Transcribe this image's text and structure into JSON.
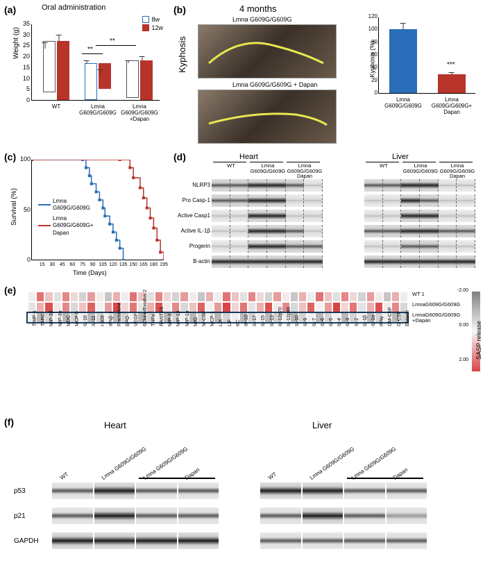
{
  "colors": {
    "blue": "#2a6db8",
    "red": "#b8332a",
    "gray": "#b0b0b0",
    "heatmap_low": "#808080",
    "heatmap_mid": "#f5f5f5",
    "heatmap_high": "#d94545"
  },
  "panels": {
    "a": {
      "label": "(a)",
      "title": "Oral administration",
      "ylabel": "Weight (g)",
      "ylim": [
        0,
        35
      ],
      "ytick_step": 5,
      "legend": [
        {
          "label": "8w",
          "fill": "#ffffff",
          "border": "#2a6db8"
        },
        {
          "label": "12w",
          "fill": "#b8332a",
          "border": "#b8332a"
        }
      ],
      "groups": [
        {
          "label": "WT",
          "bars": [
            {
              "value": 23.5,
              "err": 3,
              "fill": "#ffffff",
              "border": "#555"
            },
            {
              "value": 27,
              "err": 3,
              "fill": "#b8332a",
              "border": "#b8332a"
            }
          ]
        },
        {
          "label": "Lmna\nG609G/G609G",
          "bars": [
            {
              "value": 17,
              "err": 1,
              "fill": "#ffffff",
              "border": "#2a6db8"
            },
            {
              "value": 12,
              "err": 2,
              "fill": "#b8332a",
              "border": "#b8332a"
            }
          ]
        },
        {
          "label": "Lmna\nG609G/G609G\n+Dapan",
          "bars": [
            {
              "value": 17,
              "err": 1,
              "fill": "#ffffff",
              "border": "#555"
            },
            {
              "value": 18,
              "err": 2,
              "fill": "#b8332a",
              "border": "#b8332a"
            }
          ]
        }
      ],
      "sig": [
        {
          "text": "**",
          "from_group": 1,
          "to_group": 1,
          "y": 21
        },
        {
          "text": "**",
          "from_group": 1,
          "to_group": 2,
          "y": 23
        }
      ]
    },
    "b": {
      "label": "(b)",
      "title": "4 months",
      "kyphosis_label": "Kyphosis",
      "mouse_labels": [
        "Lmna G609G/G609G",
        "Lmna G609G/G609G + Dapan"
      ],
      "ylabel": "Kyphosis (%)",
      "ylim": [
        0,
        120
      ],
      "ytick_step": 20,
      "bars": [
        {
          "label": "Lmna G609G/G609G",
          "value": 100,
          "err": 10,
          "fill": "#2a6db8"
        },
        {
          "label": "Lmna\nG609G/G609G+\nDapan",
          "value": 30,
          "err": 3,
          "fill": "#b8332a"
        }
      ],
      "sig": "***"
    },
    "c": {
      "label": "(c)",
      "ylabel": "Survival (%)",
      "xlabel": "Time (Days)",
      "ylim": [
        0,
        100
      ],
      "ytick_step": 50,
      "xlim": [
        0,
        195
      ],
      "xticks": [
        15,
        30,
        45,
        60,
        75,
        90,
        105,
        120,
        135,
        150,
        165,
        180,
        195
      ],
      "series": [
        {
          "label": "Lmna\nG609G/G609G",
          "color": "#2a6db8",
          "points": [
            [
              0,
              100
            ],
            [
              75,
              100
            ],
            [
              80,
              92
            ],
            [
              85,
              84
            ],
            [
              88,
              76
            ],
            [
              95,
              68
            ],
            [
              100,
              60
            ],
            [
              105,
              52
            ],
            [
              108,
              44
            ],
            [
              115,
              36
            ],
            [
              120,
              28
            ],
            [
              125,
              20
            ],
            [
              130,
              12
            ],
            [
              135,
              0
            ]
          ]
        },
        {
          "label": "Lmna\nG609G/G609G+\nDapan",
          "color": "#b8332a",
          "points": [
            [
              0,
              100
            ],
            [
              130,
              100
            ],
            [
              145,
              92
            ],
            [
              150,
              82
            ],
            [
              160,
              72
            ],
            [
              165,
              62
            ],
            [
              170,
              52
            ],
            [
              175,
              42
            ],
            [
              180,
              32
            ],
            [
              185,
              20
            ],
            [
              190,
              8
            ],
            [
              195,
              0
            ]
          ]
        }
      ]
    },
    "d": {
      "label": "(d)",
      "tissues": [
        "Heart",
        "Liver"
      ],
      "lanes_per_group": 2,
      "groups": [
        "WT",
        "Lmna\nG609G/G609G",
        "Lmna G609G/G609G\nDapan"
      ],
      "proteins": [
        "NLRP3",
        "Pro Casp-1",
        "Active Casp1",
        "Active IL-1β",
        "Progerin",
        "B-actin"
      ],
      "intensities": {
        "Heart": [
          [
            "med",
            "med",
            "dark",
            "dark",
            "med",
            "light"
          ],
          [
            "med",
            "med",
            "dark",
            "dark",
            "light",
            "light"
          ],
          [
            "light",
            "light",
            "dark",
            "dark",
            "light",
            "light"
          ],
          [
            "light",
            "light",
            "dark",
            "dark",
            "med",
            "light"
          ],
          [
            "light",
            "light",
            "dark",
            "dark",
            "med",
            "med"
          ],
          [
            "dark",
            "dark",
            "dark",
            "dark",
            "dark",
            "dark"
          ]
        ],
        "Liver": [
          [
            "med",
            "med",
            "dark",
            "dark",
            "light",
            "light"
          ],
          [
            "light",
            "light",
            "dark",
            "med",
            "light",
            "light"
          ],
          [
            "light",
            "light",
            "dark",
            "dark",
            "light",
            "light"
          ],
          [
            "med",
            "med",
            "dark",
            "dark",
            "med",
            "med"
          ],
          [
            "light",
            "light",
            "med",
            "med",
            "light",
            "light"
          ],
          [
            "dark",
            "dark",
            "dark",
            "dark",
            "dark",
            "dark"
          ]
        ]
      }
    },
    "e": {
      "label": "(e)",
      "row_labels": [
        "WT 1",
        "LmnaG609G/G609G",
        "LmnaG609G/G609G\n+Dapan"
      ],
      "col_labels": [
        "TIMP-1",
        "TARC",
        "MIP-3β",
        "MIP-3α",
        "MDC",
        "MCP-5",
        "IL-16",
        "IL-11",
        "I-309",
        "IFNβ-1",
        "Fractalkine",
        "EPO",
        "VEGF",
        "6Ckine/Exodus 2",
        "TNFα",
        "RANTES",
        "MIP-2",
        "MIP-1β",
        "MIP-1α",
        "MIG",
        "M-CSF",
        "MCP-1",
        "LIX",
        "LIF",
        "KC",
        "IP-10",
        "IL-17",
        "IL-15",
        "IL-13",
        "IL-12p70",
        "IL-12p40",
        "IL-10",
        "IL-9",
        "IL-7",
        "IL-6",
        "IL-5",
        "IL-4",
        "IL-3",
        "IL-2",
        "IL-1β",
        "IL-1α",
        "IFNγ",
        "GM-CSF",
        "G-CSF",
        "Eotaxin"
      ],
      "colorbar": {
        "label": "SASP release",
        "ticks": [
          -2.0,
          0.0,
          2.0
        ]
      },
      "highlight_row": 2
    },
    "f": {
      "label": "(f)",
      "tissues": [
        "Heart",
        "Liver"
      ],
      "lane_labels": [
        "WT",
        "Lmna G609G/G609G",
        "Lmna G609G/G609G",
        "Dapan"
      ],
      "proteins": [
        "p53",
        "p21",
        "GAPDH"
      ],
      "intensities": {
        "Heart": [
          [
            "med",
            "dark",
            "med",
            "med"
          ],
          [
            "med",
            "dark",
            "med",
            "med"
          ],
          [
            "dark",
            "dark",
            "dark",
            "dark"
          ]
        ],
        "Liver": [
          [
            "dark",
            "dark",
            "med",
            "med"
          ],
          [
            "med",
            "dark",
            "med",
            "light"
          ],
          [
            "med",
            "med",
            "med",
            "med"
          ]
        ]
      }
    }
  }
}
